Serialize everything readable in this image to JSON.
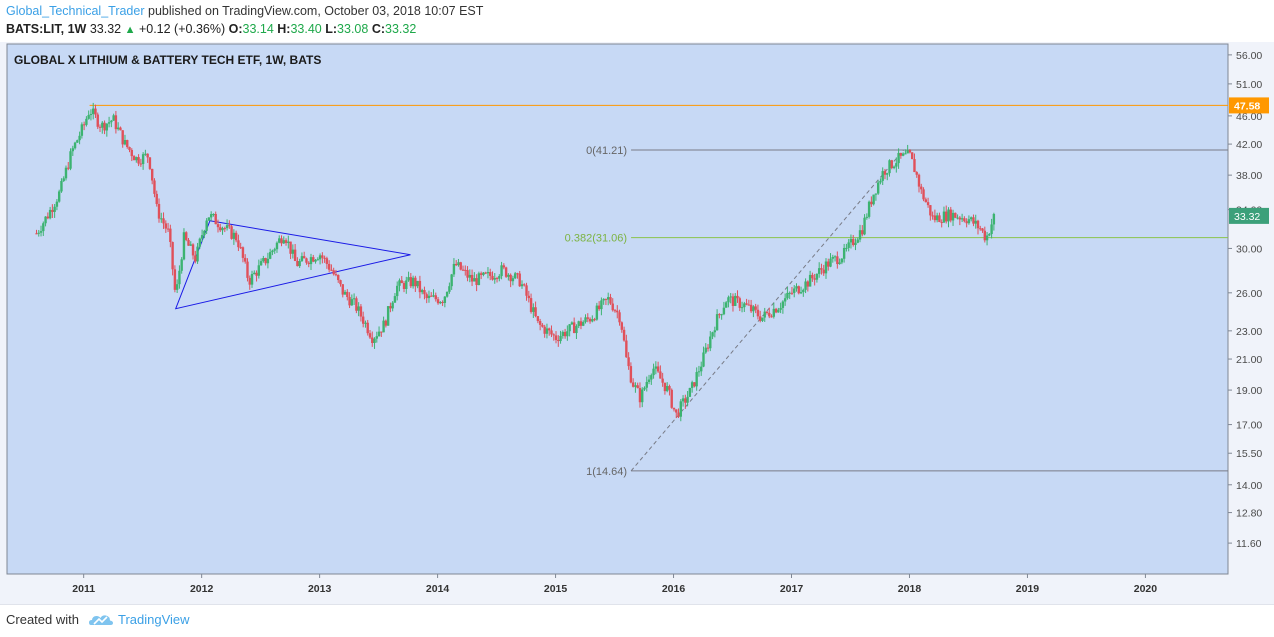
{
  "header": {
    "author": "Global_Technical_Trader",
    "published": "published on TradingView.com, October 03, 2018 10:07 EST",
    "symbol": "BATS:LIT, 1W",
    "last": "33.32",
    "change": "+0.12 (+0.36%)",
    "o_label": "O:",
    "o": "33.14",
    "h_label": "H:",
    "h": "33.40",
    "l_label": "L:",
    "l": "33.08",
    "c_label": "C:",
    "c": "33.32"
  },
  "footer": {
    "created_with": "Created with",
    "brand": "TradingView"
  },
  "colors": {
    "up": "#26a69a",
    "up_candle": "#3cb371",
    "down": "#e0505a",
    "plot_bg": "#c7d9f5",
    "triangle": "#1a1ae6",
    "orange": "#ff9800",
    "fib_green": "#8bc34a",
    "price_badge": "#3ca07a"
  },
  "chart_data": {
    "type": "candlestick",
    "title": "GLOBAL X LITHIUM & BATTERY TECH ETF, 1W, BATS",
    "y_scale": "log",
    "ylim": [
      10.5,
      58
    ],
    "y_ticks": [
      "56.00",
      "51.00",
      "46.00",
      "42.00",
      "38.00",
      "34.00",
      "30.00",
      "26.00",
      "23.00",
      "21.00",
      "19.00",
      "17.00",
      "15.50",
      "14.00",
      "12.80",
      "11.60"
    ],
    "x_ticks": [
      "2011",
      "2012",
      "2013",
      "2014",
      "2015",
      "2016",
      "2017",
      "2018",
      "2019",
      "2020"
    ],
    "x_range_years": [
      2010.35,
      2020.7
    ],
    "anchors": [
      [
        2010.6,
        31.5
      ],
      [
        2010.7,
        33.5
      ],
      [
        2010.8,
        36
      ],
      [
        2010.9,
        41
      ],
      [
        2011.0,
        44.5
      ],
      [
        2011.05,
        47.0
      ],
      [
        2011.15,
        44.5
      ],
      [
        2011.25,
        45.5
      ],
      [
        2011.35,
        42
      ],
      [
        2011.45,
        40
      ],
      [
        2011.55,
        40.5
      ],
      [
        2011.62,
        34
      ],
      [
        2011.72,
        31.5
      ],
      [
        2011.78,
        25.5
      ],
      [
        2011.85,
        31
      ],
      [
        2011.95,
        29
      ],
      [
        2012.05,
        33.5
      ],
      [
        2012.15,
        32.5
      ],
      [
        2012.3,
        31
      ],
      [
        2012.4,
        27
      ],
      [
        2012.55,
        29
      ],
      [
        2012.7,
        31.5
      ],
      [
        2012.8,
        28.5
      ],
      [
        2012.9,
        29
      ],
      [
        2013.0,
        29.5
      ],
      [
        2013.1,
        28
      ],
      [
        2013.2,
        26
      ],
      [
        2013.3,
        25
      ],
      [
        2013.45,
        22.5
      ],
      [
        2013.55,
        23.5
      ],
      [
        2013.65,
        26.5
      ],
      [
        2013.8,
        27
      ],
      [
        2013.9,
        25.5
      ],
      [
        2014.05,
        25.5
      ],
      [
        2014.15,
        28.5
      ],
      [
        2014.3,
        27
      ],
      [
        2014.45,
        27.5
      ],
      [
        2014.55,
        28
      ],
      [
        2014.7,
        27
      ],
      [
        2014.85,
        23.5
      ],
      [
        2015.0,
        22.5
      ],
      [
        2015.1,
        23
      ],
      [
        2015.3,
        24
      ],
      [
        2015.45,
        25.5
      ],
      [
        2015.55,
        24
      ],
      [
        2015.6,
        21
      ],
      [
        2015.65,
        19.5
      ],
      [
        2015.72,
        18.5
      ],
      [
        2015.82,
        20.5
      ],
      [
        2015.95,
        19
      ],
      [
        2016.02,
        17.5
      ],
      [
        2016.15,
        19
      ],
      [
        2016.25,
        21
      ],
      [
        2016.35,
        23.5
      ],
      [
        2016.45,
        25.5
      ],
      [
        2016.6,
        25
      ],
      [
        2016.75,
        24
      ],
      [
        2016.9,
        25
      ],
      [
        2017.0,
        26
      ],
      [
        2017.15,
        27
      ],
      [
        2017.3,
        28.5
      ],
      [
        2017.45,
        29.5
      ],
      [
        2017.6,
        32
      ],
      [
        2017.7,
        36
      ],
      [
        2017.78,
        38.5
      ],
      [
        2017.9,
        40
      ],
      [
        2018.0,
        40.5
      ],
      [
        2018.05,
        38.5
      ],
      [
        2018.1,
        36
      ],
      [
        2018.2,
        33
      ],
      [
        2018.35,
        33.5
      ],
      [
        2018.5,
        33
      ],
      [
        2018.6,
        32
      ],
      [
        2018.65,
        31
      ],
      [
        2018.72,
        33.3
      ]
    ],
    "last_close": 33.32,
    "annotations": [
      {
        "type": "hline",
        "value": 47.58,
        "label": "47.58",
        "color": "orange"
      },
      {
        "type": "fib",
        "level": "0",
        "value": 41.21,
        "label": "0(41.21)"
      },
      {
        "type": "fib",
        "level": "0.382",
        "value": 31.06,
        "label": "0.382(31.06)"
      },
      {
        "type": "fib",
        "level": "1",
        "value": 14.64,
        "label": "1(14.64)"
      },
      {
        "type": "triangle",
        "points": [
          [
            2012.07,
            32.8
          ],
          [
            2013.77,
            29.4
          ],
          [
            2011.78,
            24.7
          ]
        ]
      }
    ]
  }
}
